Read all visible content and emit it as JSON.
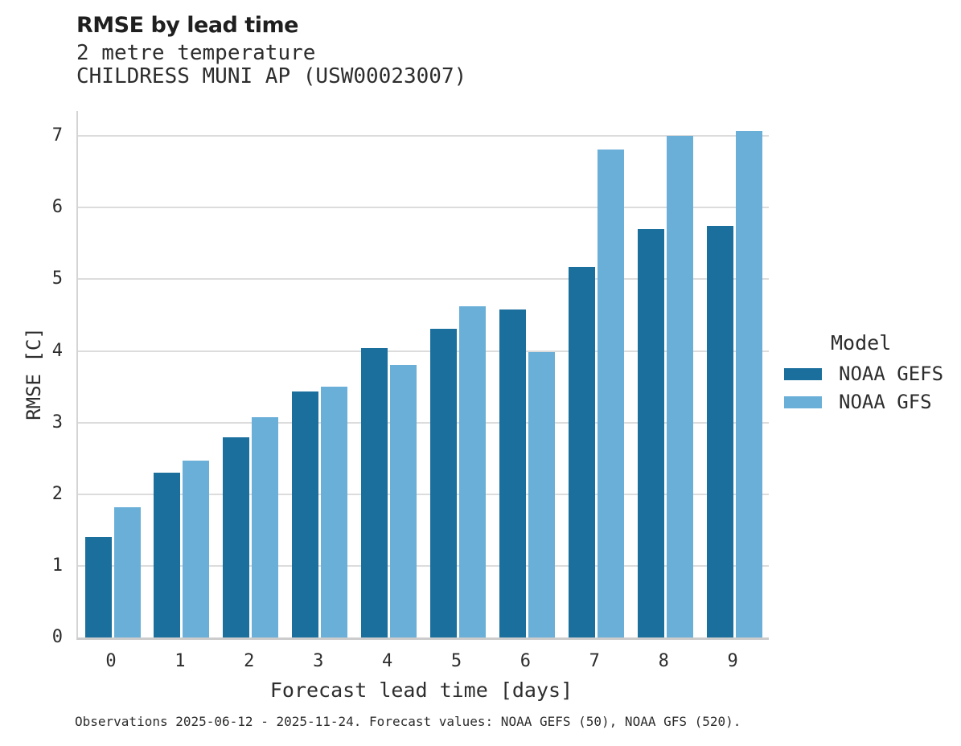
{
  "header": {
    "title": "RMSE by lead time",
    "subtitle_variable": "2 metre temperature",
    "subtitle_station": "CHILDRESS MUNI AP (USW00023007)"
  },
  "legend": {
    "title": "Model",
    "entries": [
      {
        "label": "NOAA GEFS",
        "color": "#1a6f9d"
      },
      {
        "label": "NOAA GFS",
        "color": "#69afd8"
      }
    ]
  },
  "footer": {
    "caption": "Observations 2025-06-12 - 2025-11-24. Forecast values: NOAA GEFS (50), NOAA GFS (520)."
  },
  "chart_data": {
    "type": "bar",
    "title": "RMSE by lead time",
    "subtitle": [
      "2 metre temperature",
      "CHILDRESS MUNI AP (USW00023007)"
    ],
    "xlabel": "Forecast lead time [days]",
    "ylabel": "RMSE [C]",
    "categories": [
      "0",
      "1",
      "2",
      "3",
      "4",
      "5",
      "6",
      "7",
      "8",
      "9"
    ],
    "series": [
      {
        "name": "NOAA GEFS",
        "color": "#1a6f9d",
        "values": [
          1.4,
          2.3,
          2.79,
          3.43,
          4.04,
          4.31,
          4.58,
          5.17,
          5.7,
          5.75
        ]
      },
      {
        "name": "NOAA GFS",
        "color": "#69afd8",
        "values": [
          1.82,
          2.47,
          3.08,
          3.5,
          3.81,
          4.62,
          3.98,
          6.81,
          7.0,
          7.07
        ]
      }
    ],
    "ylim": [
      0,
      7.35
    ],
    "yticks": [
      0,
      1,
      2,
      3,
      4,
      5,
      6,
      7
    ],
    "grid": true,
    "legend_title": "Model",
    "legend_position": "right"
  }
}
